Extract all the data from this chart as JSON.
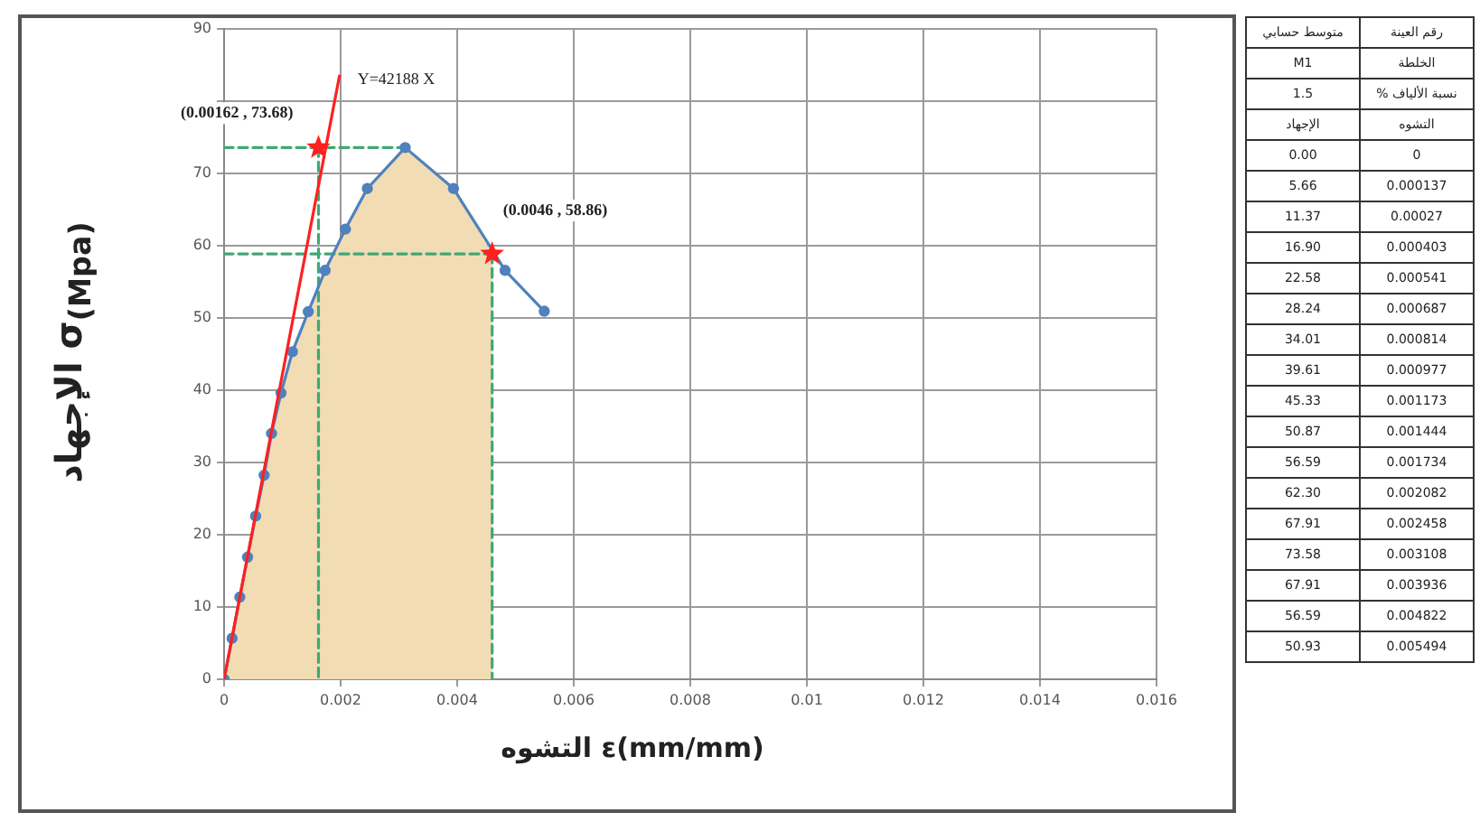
{
  "chart_data": [
    {
      "type": "line",
      "xlabel": "التشوه ε(mm/mm)",
      "ylabel": "الإجهاد σ$_{(Mpa)}$",
      "xlim": [
        0,
        0.016
      ],
      "xticks": [
        0,
        0.002,
        0.004,
        0.006,
        0.008,
        0.01,
        0.012,
        0.014,
        0.016
      ],
      "ylim": [
        0,
        90
      ],
      "yticks": [
        0,
        10,
        20,
        30,
        40,
        50,
        60,
        70,
        {
          "value": 80,
          "label": null
        },
        90
      ],
      "grid": true,
      "series": [
        {
          "type": "area",
          "color": "#f2dcb4",
          "x": [
            0,
            0.000137,
            0.00027,
            0.000403,
            0.000541,
            0.000687,
            0.000814,
            0.000977,
            0.001173,
            0.001444,
            0.001734,
            0.002082,
            0.002458,
            0.003108,
            0.003936,
            0.0046
          ],
          "values": [
            0,
            5.66,
            11.37,
            16.9,
            22.58,
            28.24,
            34.01,
            39.61,
            45.33,
            50.87,
            56.59,
            62.3,
            67.91,
            73.58,
            67.91,
            58.86
          ]
        },
        {
          "color": "#3fa876",
          "line_style": "dashed",
          "x": [
            0,
            0.003108
          ],
          "values": [
            73.58,
            73.58
          ]
        },
        {
          "color": "#3fa876",
          "line_style": "dashed",
          "x": [
            0.00162,
            0.00162
          ],
          "values": [
            73.58,
            0
          ]
        },
        {
          "color": "#3fa876",
          "line_style": "dashed",
          "x": [
            0,
            0.0046
          ],
          "values": [
            58.86,
            58.86
          ]
        },
        {
          "color": "#3fa876",
          "line_style": "dashed",
          "x": [
            0.0046,
            0.0046
          ],
          "values": [
            58.86,
            0
          ]
        },
        {
          "color": "#4f81bd",
          "marker": "circle",
          "x": [
            0,
            0.000137,
            0.00027,
            0.000403,
            0.000541,
            0.000687,
            0.000814,
            0.000977,
            0.001173,
            0.001444,
            0.001734,
            0.002082,
            0.002458,
            0.003108,
            0.003936,
            0.004822,
            0.005494
          ],
          "values": [
            0,
            5.66,
            11.37,
            16.9,
            22.58,
            28.24,
            34.01,
            39.61,
            45.33,
            50.87,
            56.59,
            62.3,
            67.91,
            73.58,
            67.91,
            56.59,
            50.93
          ]
        },
        {
          "color": "#ff2020",
          "x": [
            0,
            0.00198
          ],
          "values": [
            0,
            83.5
          ]
        },
        {
          "type": "scatter",
          "color": "#ff2020",
          "marker": "star",
          "x": [
            0.00162,
            0.0046
          ],
          "values": [
            73.58,
            58.86
          ]
        }
      ],
      "annotations": [
        {
          "text": "Y=42188 X",
          "x": 0.00198,
          "y": 83.5
        },
        {
          "text": "(0.00162 , 73.68)",
          "x": 0.00162,
          "y": 73.58
        },
        {
          "text": "(0.0046 , 58.86)",
          "x": 0.0046,
          "y": 58.86
        }
      ]
    },
    {
      "type": "other",
      "annotations": [
        "رقم العينة",
        "متوسط حسابي",
        "الخلطة",
        "M1",
        "نسبة الألياف %",
        "1.5",
        "التشوه",
        "الإجهاد",
        "0",
        "0.00",
        "0.000137",
        "5.66",
        "0.00027",
        "11.37",
        "0.000403",
        "16.90",
        "0.000541",
        "22.58",
        "0.000687",
        "28.24",
        "0.000814",
        "34.01",
        "0.000977",
        "39.61",
        "0.001173",
        "45.33",
        "0.001444",
        "50.87",
        "0.001734",
        "56.59",
        "0.002082",
        "62.30",
        "0.002458",
        "67.91",
        "0.003108",
        "73.58",
        "0.003936",
        "67.91",
        "0.004822",
        "56.59",
        "0.005494",
        "50.93"
      ]
    }
  ]
}
